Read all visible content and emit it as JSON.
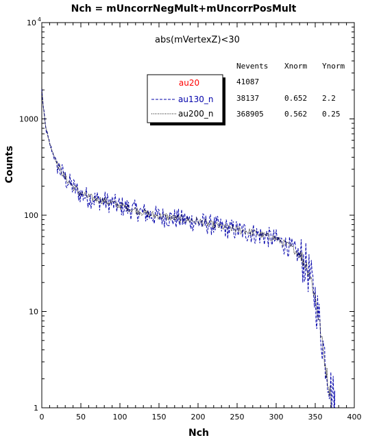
{
  "chart_data": {
    "type": "line",
    "title": "Nch = mUncorrNegMult+mUncorrPosMult",
    "cut": "abs(mVertexZ)<30",
    "xlabel": "Nch",
    "ylabel": "Counts",
    "xlim": [
      0,
      400
    ],
    "ylim": [
      1,
      10000
    ],
    "yscale": "log",
    "x_ticks": [
      0,
      50,
      100,
      150,
      200,
      250,
      300,
      350,
      400
    ],
    "x_tick_labels": [
      "0",
      "50",
      "100",
      "150",
      "200",
      "250",
      "300",
      "350",
      "400"
    ],
    "y_tick_labels": [
      {
        "value": 1,
        "label": "1"
      },
      {
        "value": 10,
        "label": "10"
      },
      {
        "value": 100,
        "label": "100"
      },
      {
        "value": 1000,
        "label": "1000"
      }
    ],
    "y_top_label": {
      "base": "10",
      "exp": "4"
    },
    "grid": false,
    "legend": {
      "placement": "top-center",
      "headers": [
        "Nevents",
        "Xnorm",
        "Ynorm"
      ],
      "entries": [
        {
          "name": "au20",
          "nevents": "41087",
          "xnorm": "",
          "ynorm": "",
          "color": "#ff0000",
          "style": "solid"
        },
        {
          "name": "au130_n",
          "nevents": "38137",
          "xnorm": "0.652",
          "ynorm": "2.2",
          "color": "#0000aa",
          "style": "dashed"
        },
        {
          "name": "au200_n",
          "nevents": "368905",
          "xnorm": "0.562",
          "ynorm": "0.25",
          "color": "#000000",
          "style": "dotted"
        }
      ]
    },
    "series": [
      {
        "name": "au130_n",
        "color": "#0000aa",
        "style": "dashed",
        "x": [
          0,
          2,
          5,
          10,
          15,
          20,
          30,
          40,
          50,
          60,
          70,
          80,
          100,
          120,
          140,
          160,
          180,
          200,
          220,
          240,
          260,
          280,
          300,
          310,
          320,
          330,
          340,
          345,
          350,
          355,
          360,
          365,
          370,
          375
        ],
        "y": [
          2000,
          1300,
          800,
          550,
          420,
          330,
          240,
          195,
          165,
          152,
          145,
          140,
          125,
          112,
          100,
          95,
          90,
          85,
          78,
          72,
          68,
          62,
          56,
          50,
          45,
          38,
          28,
          20,
          14,
          8,
          4.5,
          2.5,
          1.6,
          1.2
        ],
        "noise": 0.22
      },
      {
        "name": "au200_n",
        "color": "#000000",
        "style": "dotted",
        "x": [
          0,
          2,
          5,
          10,
          15,
          20,
          30,
          40,
          50,
          60,
          70,
          80,
          100,
          120,
          140,
          160,
          180,
          200,
          220,
          240,
          260,
          280,
          300,
          310,
          320,
          330,
          340,
          345,
          350,
          355,
          360,
          365,
          370
        ],
        "y": [
          2100,
          1350,
          820,
          560,
          430,
          335,
          245,
          198,
          168,
          154,
          147,
          141,
          126,
          113,
          101,
          96,
          91,
          86,
          79,
          73,
          69,
          63,
          57,
          51,
          46,
          39,
          29,
          21,
          14,
          8,
          4,
          2.2,
          1.3
        ],
        "noise": 0.08
      }
    ]
  }
}
